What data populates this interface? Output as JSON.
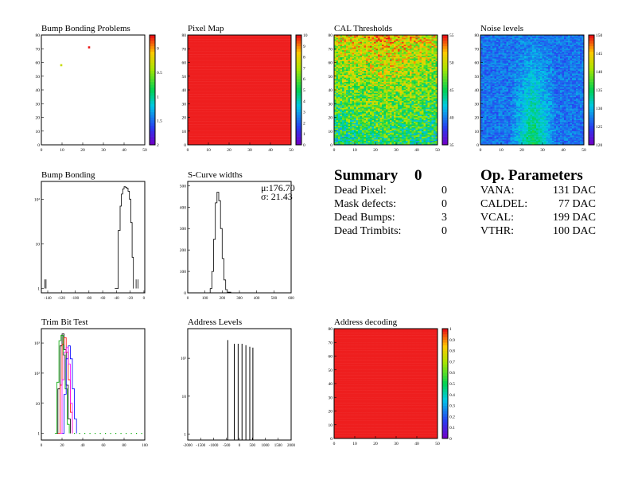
{
  "panels": {
    "bump_problems": {
      "title": "Bump Bonding Problems"
    },
    "pixel_map": {
      "title": "Pixel Map"
    },
    "cal_thresholds": {
      "title": "CAL Thresholds"
    },
    "noise_levels": {
      "title": "Noise levels"
    },
    "bump_bonding": {
      "title": "Bump Bonding"
    },
    "scurve": {
      "title": "S-Curve widths",
      "mu": "μ:176.70",
      "sigma": "σ: 21.43"
    },
    "trim_bit": {
      "title": "Trim Bit Test"
    },
    "address_levels": {
      "title": "Address Levels"
    },
    "address_decoding": {
      "title": "Address decoding"
    }
  },
  "summary": {
    "title": "Summary",
    "count": "0",
    "rows": [
      {
        "label": "Dead Pixel:",
        "value": "0"
      },
      {
        "label": "Mask defects:",
        "value": "0"
      },
      {
        "label": "Dead Bumps:",
        "value": "3"
      },
      {
        "label": "Dead Trimbits:",
        "value": "0"
      }
    ]
  },
  "op_params": {
    "title": "Op. Parameters",
    "rows": [
      {
        "label": "VANA:",
        "value": "131 DAC"
      },
      {
        "label": "CALDEL:",
        "value": "77 DAC"
      },
      {
        "label": "VCAL:",
        "value": "199 DAC"
      },
      {
        "label": "VTHR:",
        "value": "100 DAC"
      }
    ]
  },
  "colors": {
    "map_red": "#ee1e1e",
    "noise_blue": "#2b6cf0"
  },
  "chart_data": [
    {
      "id": "bump_problems",
      "type": "heatmap",
      "xticks": [
        "0",
        "10",
        "20",
        "30",
        "40",
        "50"
      ],
      "yticks": [
        "0",
        "10",
        "20",
        "30",
        "40",
        "50",
        "60",
        "70",
        "80"
      ],
      "xlim": [
        0,
        52
      ],
      "ylim": [
        0,
        80
      ],
      "points": [
        {
          "x": 10,
          "y": 58,
          "z": -0.5
        },
        {
          "x": 24,
          "y": 71,
          "z": 0
        }
      ],
      "zticks": [
        "0",
        "0.5",
        "1",
        "1.5",
        "2"
      ],
      "zlim": [
        -2,
        0
      ]
    },
    {
      "id": "pixel_map",
      "type": "heatmap",
      "xticks": [
        "0",
        "10",
        "20",
        "30",
        "40",
        "50"
      ],
      "yticks": [
        "0",
        "10",
        "20",
        "30",
        "40",
        "50",
        "60",
        "70",
        "80"
      ],
      "xlim": [
        0,
        52
      ],
      "ylim": [
        0,
        80
      ],
      "fill_value": 10,
      "zticks": [
        "0",
        "1",
        "2",
        "3",
        "4",
        "5",
        "6",
        "7",
        "8",
        "9",
        "10"
      ],
      "zlim": [
        0,
        10
      ]
    },
    {
      "id": "cal_thresholds",
      "type": "heatmap",
      "xticks": [
        "0",
        "10",
        "20",
        "30",
        "40",
        "50"
      ],
      "yticks": [
        "0",
        "10",
        "20",
        "30",
        "40",
        "50",
        "60",
        "70",
        "80"
      ],
      "xlim": [
        0,
        52
      ],
      "ylim": [
        0,
        80
      ],
      "zticks": [
        "35",
        "40",
        "45",
        "50",
        "55"
      ],
      "zlim": [
        32,
        57
      ]
    },
    {
      "id": "noise_levels",
      "type": "heatmap",
      "xticks": [
        "0",
        "10",
        "20",
        "30",
        "40",
        "50"
      ],
      "yticks": [
        "0",
        "10",
        "20",
        "30",
        "40",
        "50",
        "60",
        "70",
        "80"
      ],
      "xlim": [
        0,
        52
      ],
      "ylim": [
        0,
        80
      ],
      "zticks": [
        "120",
        "125",
        "130",
        "135",
        "140",
        "145",
        "150"
      ],
      "zlim": [
        118,
        153
      ]
    },
    {
      "id": "bump_bonding",
      "type": "line",
      "ylog": true,
      "xticks": [
        "-140",
        "-120",
        "-100",
        "-80",
        "-60",
        "-40",
        "-20",
        "0"
      ],
      "xlim": [
        -150,
        5
      ],
      "yticks": [
        "1",
        "10",
        "10²"
      ],
      "ylim": [
        0.8,
        250
      ],
      "x": [
        -40,
        -35,
        -32,
        -30,
        -28,
        -26,
        -24,
        -22,
        -20,
        -18,
        -16,
        -14,
        -12
      ],
      "y": [
        1,
        20,
        70,
        130,
        170,
        190,
        185,
        175,
        150,
        100,
        30,
        5,
        1
      ]
    },
    {
      "id": "scurve",
      "type": "line",
      "xticks": [
        "0",
        "100",
        "200",
        "300",
        "400",
        "500",
        "600"
      ],
      "xlim": [
        0,
        600
      ],
      "yticks": [
        "0",
        "100",
        "200",
        "300",
        "400",
        "500"
      ],
      "ylim": [
        0,
        520
      ],
      "x": [
        110,
        130,
        140,
        150,
        160,
        170,
        180,
        190,
        200,
        210,
        220,
        230,
        250
      ],
      "y": [
        0,
        20,
        100,
        250,
        420,
        470,
        430,
        300,
        160,
        60,
        15,
        3,
        0
      ]
    },
    {
      "id": "trim_bit",
      "type": "line",
      "ylog": true,
      "xticks": [
        "0",
        "20",
        "40",
        "60",
        "80",
        "100"
      ],
      "xlim": [
        0,
        100
      ],
      "yticks": [
        "1",
        "10",
        "10²",
        "10³"
      ],
      "ylim": [
        0.6,
        3000
      ],
      "series": [
        {
          "color": "#000000",
          "x": [
            14,
            16,
            18,
            20,
            22,
            24,
            26,
            28
          ],
          "y": [
            1,
            30,
            800,
            2000,
            600,
            40,
            3,
            1
          ]
        },
        {
          "color": "#ff0000",
          "x": [
            16,
            18,
            20,
            22,
            24,
            26,
            28,
            30
          ],
          "y": [
            1,
            40,
            900,
            1500,
            500,
            60,
            5,
            1
          ]
        },
        {
          "color": "#00aa00",
          "x": [
            13,
            15,
            17,
            19,
            21,
            23,
            25,
            27
          ],
          "y": [
            1,
            50,
            1200,
            1800,
            400,
            30,
            2,
            1
          ]
        },
        {
          "color": "#0000ff",
          "x": [
            20,
            22,
            24,
            26,
            28,
            30,
            32,
            34
          ],
          "y": [
            1,
            20,
            300,
            800,
            300,
            30,
            3,
            1
          ]
        },
        {
          "color": "#ff00ff",
          "x": [
            18,
            20,
            22,
            24,
            26,
            28,
            30
          ],
          "y": [
            1,
            60,
            500,
            700,
            200,
            10,
            1
          ]
        }
      ]
    },
    {
      "id": "address_levels",
      "type": "line",
      "ylog": true,
      "xticks": [
        "-2000",
        "-1500",
        "-1000",
        "-500",
        "0",
        "500",
        "1000",
        "1500",
        "2000"
      ],
      "xlim": [
        -2000,
        2000
      ],
      "yticks": [
        "1",
        "10",
        "10²"
      ],
      "ylim": [
        0.7,
        600
      ],
      "peaks": [
        {
          "x": -450,
          "y": 300
        },
        {
          "x": -200,
          "y": 240
        },
        {
          "x": -50,
          "y": 240
        },
        {
          "x": 100,
          "y": 240
        },
        {
          "x": 250,
          "y": 220
        },
        {
          "x": 400,
          "y": 200
        },
        {
          "x": 520,
          "y": 190
        }
      ]
    },
    {
      "id": "address_decoding",
      "type": "heatmap",
      "xticks": [
        "0",
        "10",
        "20",
        "30",
        "40",
        "50"
      ],
      "yticks": [
        "0",
        "10",
        "20",
        "30",
        "40",
        "50",
        "60",
        "70",
        "80"
      ],
      "xlim": [
        0,
        52
      ],
      "ylim": [
        0,
        80
      ],
      "fill_value": 1,
      "zticks": [
        "0",
        "0.1",
        "0.2",
        "0.3",
        "0.4",
        "0.5",
        "0.6",
        "0.7",
        "0.8",
        "0.9",
        "1"
      ],
      "zlim": [
        0,
        1
      ]
    }
  ]
}
